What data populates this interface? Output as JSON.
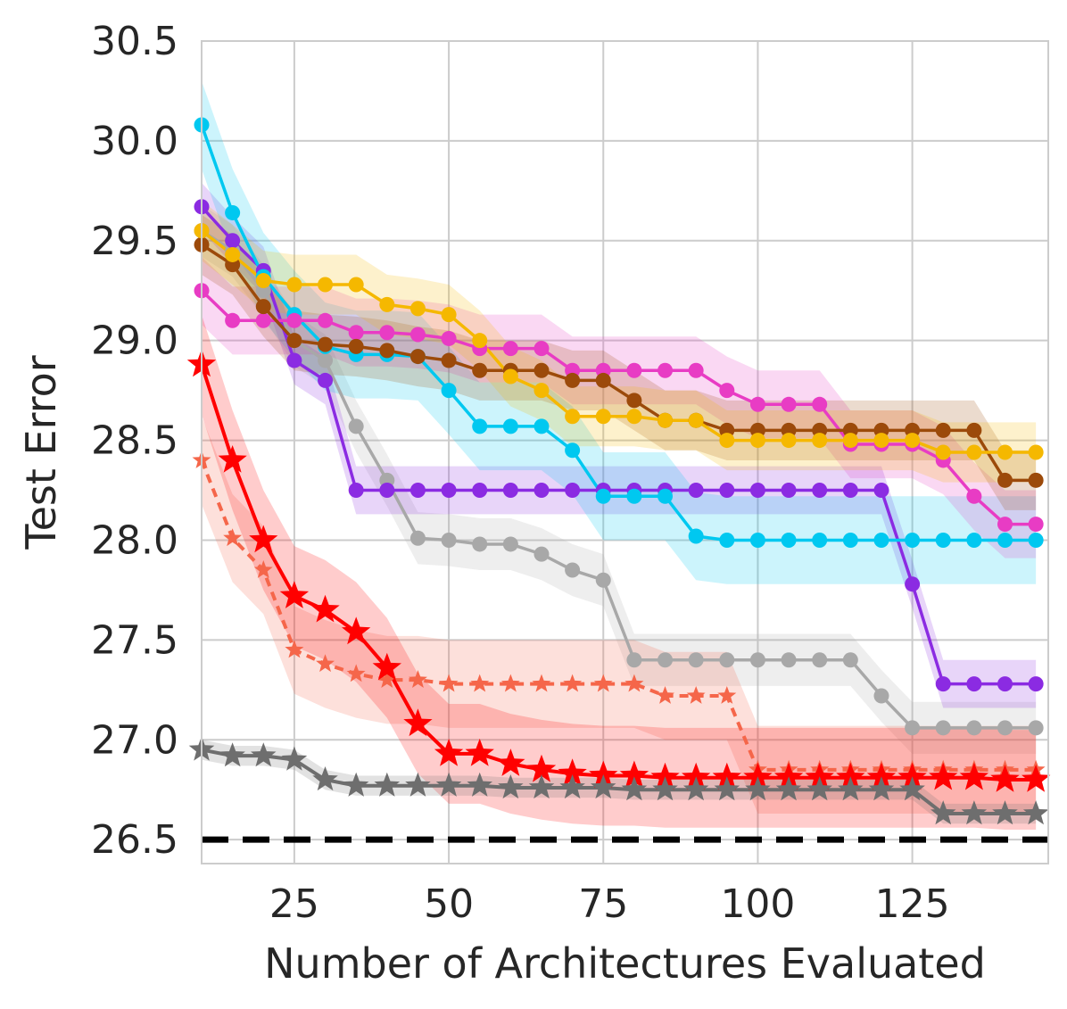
{
  "chart_data": {
    "type": "line",
    "title": "",
    "xlabel": "Number of Architectures Evaluated",
    "ylabel": "Test Error",
    "xlim": [
      10,
      147
    ],
    "ylim": [
      26.38,
      30.5
    ],
    "xticks": [
      25,
      50,
      75,
      100,
      125
    ],
    "yticks": [
      26.5,
      27.0,
      27.5,
      28.0,
      28.5,
      29.0,
      29.5,
      30.0,
      30.5
    ],
    "ytick_labels": [
      "26.5",
      "27.0",
      "27.5",
      "28.0",
      "28.5",
      "29.0",
      "29.5",
      "30.0",
      "30.5"
    ],
    "xtick_labels": [
      "25",
      "50",
      "75",
      "100",
      "125"
    ],
    "grid": true,
    "reference_line": {
      "y": 26.5,
      "style": "dashed",
      "color": "#000000"
    },
    "series": [
      {
        "name": "series-gray-dot",
        "color": "#a8a8a8",
        "marker": "circle",
        "linestyle": "solid",
        "band": 0.13,
        "x": [
          10,
          15,
          20,
          25,
          30,
          35,
          40,
          45,
          50,
          55,
          60,
          65,
          70,
          75,
          80,
          85,
          90,
          95,
          100,
          105,
          110,
          115,
          120,
          125,
          130,
          135,
          140,
          145
        ],
        "y": [
          29.55,
          29.45,
          29.25,
          29.0,
          28.9,
          28.57,
          28.3,
          28.01,
          28.0,
          27.98,
          27.98,
          27.93,
          27.85,
          27.8,
          27.4,
          27.4,
          27.4,
          27.4,
          27.4,
          27.4,
          27.4,
          27.4,
          27.22,
          27.06,
          27.06,
          27.06,
          27.06,
          27.06
        ]
      },
      {
        "name": "series-purple",
        "color": "#8b2be2",
        "marker": "circle",
        "linestyle": "solid",
        "band": 0.12,
        "x": [
          10,
          15,
          20,
          25,
          30,
          35,
          40,
          45,
          50,
          55,
          60,
          65,
          70,
          75,
          80,
          85,
          90,
          95,
          100,
          105,
          110,
          115,
          120,
          125,
          130,
          135,
          140,
          145
        ],
        "y": [
          29.67,
          29.5,
          29.35,
          28.9,
          28.8,
          28.25,
          28.25,
          28.25,
          28.25,
          28.25,
          28.25,
          28.25,
          28.25,
          28.25,
          28.25,
          28.25,
          28.25,
          28.25,
          28.25,
          28.25,
          28.25,
          28.25,
          28.25,
          27.78,
          27.28,
          27.28,
          27.28,
          27.28
        ]
      },
      {
        "name": "series-cyan",
        "color": "#00c8f0",
        "marker": "circle",
        "linestyle": "solid",
        "band": 0.22,
        "x": [
          10,
          15,
          20,
          25,
          30,
          35,
          40,
          45,
          50,
          55,
          60,
          65,
          70,
          75,
          80,
          85,
          90,
          95,
          100,
          105,
          110,
          115,
          120,
          125,
          130,
          135,
          140,
          145
        ],
        "y": [
          30.08,
          29.64,
          29.32,
          29.13,
          28.97,
          28.93,
          28.93,
          28.92,
          28.75,
          28.57,
          28.57,
          28.57,
          28.45,
          28.22,
          28.22,
          28.22,
          28.02,
          28.0,
          28.0,
          28.0,
          28.0,
          28.0,
          28.0,
          28.0,
          28.0,
          28.0,
          28.0,
          28.0
        ]
      },
      {
        "name": "series-magenta",
        "color": "#e83cc4",
        "marker": "circle",
        "linestyle": "solid",
        "band": 0.17,
        "x": [
          10,
          15,
          20,
          25,
          30,
          35,
          40,
          45,
          50,
          55,
          60,
          65,
          70,
          75,
          80,
          85,
          90,
          95,
          100,
          105,
          110,
          115,
          120,
          125,
          130,
          135,
          140,
          145
        ],
        "y": [
          29.25,
          29.1,
          29.1,
          29.1,
          29.1,
          29.04,
          29.04,
          29.03,
          29.01,
          28.96,
          28.96,
          28.96,
          28.85,
          28.85,
          28.85,
          28.85,
          28.85,
          28.75,
          28.68,
          28.68,
          28.68,
          28.48,
          28.48,
          28.48,
          28.4,
          28.22,
          28.08,
          28.08
        ]
      },
      {
        "name": "series-brown",
        "color": "#9c4a0a",
        "marker": "circle",
        "linestyle": "solid",
        "band": 0.15,
        "x": [
          10,
          15,
          20,
          25,
          30,
          35,
          40,
          45,
          50,
          55,
          60,
          65,
          70,
          75,
          80,
          85,
          90,
          95,
          100,
          105,
          110,
          115,
          120,
          125,
          130,
          135,
          140,
          145
        ],
        "y": [
          29.48,
          29.38,
          29.17,
          29.0,
          28.98,
          28.97,
          28.95,
          28.92,
          28.9,
          28.85,
          28.85,
          28.85,
          28.8,
          28.8,
          28.7,
          28.6,
          28.6,
          28.55,
          28.55,
          28.55,
          28.55,
          28.55,
          28.55,
          28.55,
          28.55,
          28.55,
          28.3,
          28.3
        ]
      },
      {
        "name": "series-yellow",
        "color": "#f5b800",
        "marker": "circle",
        "linestyle": "solid",
        "band": 0.15,
        "x": [
          10,
          15,
          20,
          25,
          30,
          35,
          40,
          45,
          50,
          55,
          60,
          65,
          70,
          75,
          80,
          85,
          90,
          95,
          100,
          105,
          110,
          115,
          120,
          125,
          130,
          135,
          140,
          145
        ],
        "y": [
          29.55,
          29.43,
          29.3,
          29.28,
          29.28,
          29.28,
          29.18,
          29.16,
          29.13,
          29.0,
          28.82,
          28.75,
          28.62,
          28.62,
          28.62,
          28.6,
          28.6,
          28.5,
          28.5,
          28.5,
          28.5,
          28.5,
          28.5,
          28.5,
          28.44,
          28.44,
          28.44,
          28.44
        ]
      },
      {
        "name": "series-salmon-star-dashed",
        "color": "#f5664a",
        "marker": "star",
        "linestyle": "dashed",
        "band": 0.22,
        "x": [
          10,
          15,
          20,
          25,
          30,
          35,
          40,
          45,
          50,
          55,
          60,
          65,
          70,
          75,
          80,
          85,
          90,
          95,
          100,
          105,
          110,
          115,
          120,
          125,
          130,
          135,
          140,
          145
        ],
        "y": [
          28.4,
          28.01,
          27.85,
          27.45,
          27.38,
          27.33,
          27.3,
          27.3,
          27.28,
          27.28,
          27.28,
          27.28,
          27.28,
          27.28,
          27.28,
          27.22,
          27.22,
          27.22,
          26.85,
          26.85,
          26.85,
          26.85,
          26.85,
          26.85,
          26.85,
          26.85,
          26.85,
          26.85
        ]
      },
      {
        "name": "series-red-star",
        "color": "#ff0000",
        "marker": "star",
        "linestyle": "solid",
        "band": 0.25,
        "x": [
          10,
          15,
          20,
          25,
          30,
          35,
          40,
          45,
          50,
          55,
          60,
          65,
          70,
          75,
          80,
          85,
          90,
          95,
          100,
          105,
          110,
          115,
          120,
          125,
          130,
          135,
          140,
          145
        ],
        "y": [
          28.88,
          28.4,
          28.0,
          27.72,
          27.65,
          27.54,
          27.36,
          27.08,
          26.93,
          26.93,
          26.88,
          26.85,
          26.83,
          26.82,
          26.82,
          26.81,
          26.81,
          26.81,
          26.81,
          26.81,
          26.81,
          26.81,
          26.81,
          26.81,
          26.81,
          26.81,
          26.8,
          26.8
        ]
      },
      {
        "name": "series-darkgray-star",
        "color": "#6e6e6e",
        "marker": "star",
        "linestyle": "solid",
        "band": 0.05,
        "x": [
          10,
          15,
          20,
          25,
          30,
          35,
          40,
          45,
          50,
          55,
          60,
          65,
          70,
          75,
          80,
          85,
          90,
          95,
          100,
          105,
          110,
          115,
          120,
          125,
          130,
          135,
          140,
          145
        ],
        "y": [
          26.95,
          26.92,
          26.92,
          26.9,
          26.8,
          26.77,
          26.77,
          26.77,
          26.77,
          26.77,
          26.76,
          26.76,
          26.76,
          26.76,
          26.75,
          26.75,
          26.75,
          26.75,
          26.75,
          26.75,
          26.75,
          26.75,
          26.75,
          26.75,
          26.63,
          26.63,
          26.63,
          26.63
        ]
      }
    ]
  }
}
